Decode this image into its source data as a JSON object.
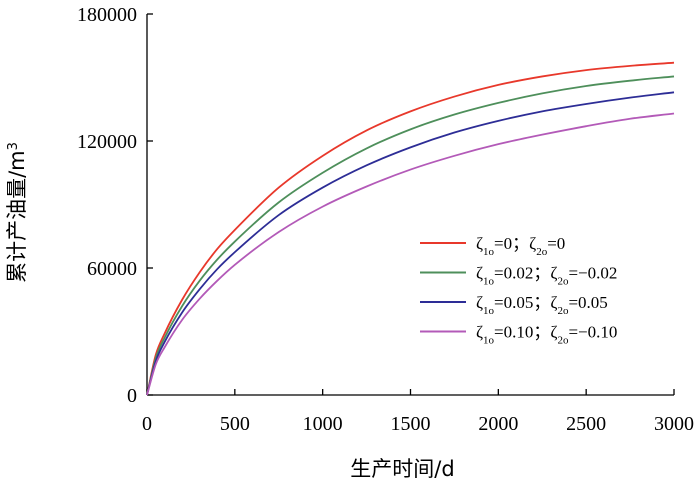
{
  "chart_data": {
    "type": "line",
    "title": "",
    "xlabel": "生产时间/d",
    "ylabel_base": "累计产油量/m",
    "ylabel_sup": "3",
    "xlim": [
      0,
      3000
    ],
    "ylim": [
      0,
      180000
    ],
    "xticks": [
      0,
      500,
      1000,
      1500,
      2000,
      2500,
      3000
    ],
    "xtick_labels": [
      "0",
      "500",
      "1000",
      "1500",
      "2000",
      "2500",
      "3000"
    ],
    "yticks": [
      0,
      60000,
      120000,
      180000
    ],
    "ytick_labels": [
      "0",
      "60000",
      "120000",
      "180000"
    ],
    "grid": false,
    "legend_position": "center-right",
    "x": [
      0,
      50,
      100,
      200,
      300,
      400,
      500,
      750,
      1000,
      1250,
      1500,
      1750,
      2000,
      2250,
      2500,
      2750,
      3000
    ],
    "series": [
      {
        "name": "ζ1o=0；ζ2o=0",
        "color": "#e8382b",
        "values": [
          0,
          19000,
          29000,
          45000,
          58000,
          69000,
          78000,
          98000,
          113000,
          125000,
          134000,
          141000,
          146500,
          150500,
          153500,
          155500,
          157000
        ]
      },
      {
        "name": "ζ1o=0.02；ζ2o=−0.02",
        "color": "#4e8f5b",
        "values": [
          0,
          17500,
          27000,
          42000,
          54000,
          64000,
          72500,
          91000,
          105000,
          116500,
          125500,
          132500,
          138000,
          142500,
          146000,
          148500,
          150500
        ]
      },
      {
        "name": "ζ1o=0.05；ζ2o=0.05",
        "color": "#2d2d96",
        "values": [
          0,
          16000,
          25000,
          39000,
          50000,
          59500,
          67500,
          85000,
          98000,
          108500,
          117000,
          124000,
          129500,
          134000,
          137500,
          140500,
          143000
        ]
      },
      {
        "name": "ζ1o=0.10；ζ2o=−0.10",
        "color": "#b35ab8",
        "values": [
          0,
          14500,
          22500,
          35500,
          45500,
          54000,
          61500,
          77000,
          89000,
          98500,
          106500,
          113000,
          118500,
          123000,
          127000,
          130500,
          133000
        ]
      }
    ],
    "legend": [
      {
        "zeta1": "ζ",
        "sub1": "1o",
        "mid": "=0；",
        "zeta2": "ζ",
        "sub2": "2o",
        "rest": "=0"
      },
      {
        "zeta1": "ζ",
        "sub1": "1o",
        "mid": "=0.02；",
        "zeta2": "ζ",
        "sub2": "2o",
        "rest": "=−0.02"
      },
      {
        "zeta1": "ζ",
        "sub1": "1o",
        "mid": "=0.05；",
        "zeta2": "ζ",
        "sub2": "2o",
        "rest": "=0.05"
      },
      {
        "zeta1": "ζ",
        "sub1": "1o",
        "mid": "=0.10；",
        "zeta2": "ζ",
        "sub2": "2o",
        "rest": "=−0.10"
      }
    ]
  }
}
